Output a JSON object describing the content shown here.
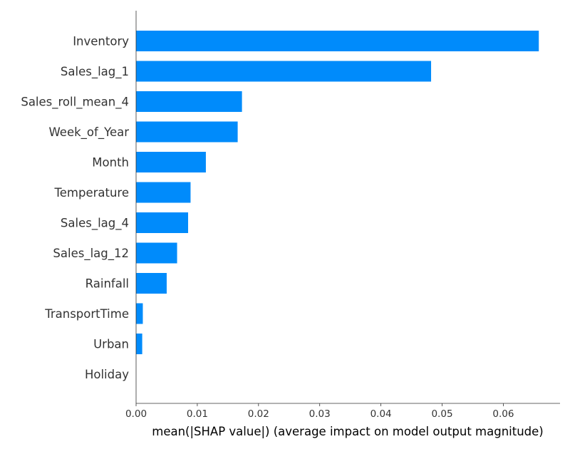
{
  "chart_data": {
    "type": "bar",
    "orientation": "horizontal",
    "categories": [
      "Inventory",
      "Sales_lag_1",
      "Sales_roll_mean_4",
      "Week_of_Year",
      "Month",
      "Temperature",
      "Sales_lag_4",
      "Sales_lag_12",
      "Rainfall",
      "TransportTime",
      "Urban",
      "Holiday"
    ],
    "values": [
      0.0658,
      0.0482,
      0.0173,
      0.0166,
      0.0114,
      0.0089,
      0.0085,
      0.0067,
      0.005,
      0.0011,
      0.001,
      0.0
    ],
    "xlabel": "mean(|SHAP value|) (average impact on model output magnitude)",
    "ylabel": "",
    "title": "",
    "xlim": [
      0,
      0.069
    ],
    "xticks": [
      0.0,
      0.01,
      0.02,
      0.03,
      0.04,
      0.05,
      0.06
    ],
    "xtick_labels": [
      "0.00",
      "0.01",
      "0.02",
      "0.03",
      "0.04",
      "0.05",
      "0.06"
    ],
    "grid": false,
    "bar_color": "#008bfb"
  }
}
